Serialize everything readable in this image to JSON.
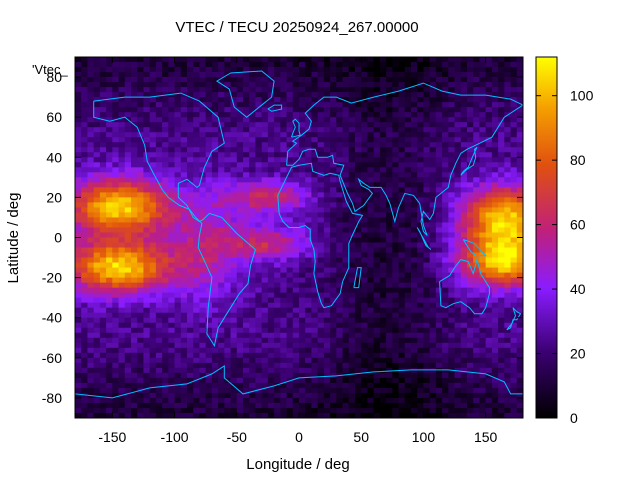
{
  "chart_data": {
    "type": "heatmap",
    "title": "VTEC / TECU 20250924_267.00000",
    "xlabel": "Longitude / deg",
    "ylabel": "Latitude / deg",
    "series_label": "'Vtec_",
    "xlim": [
      -180,
      180
    ],
    "ylim": [
      -90,
      90
    ],
    "x_ticks": [
      -150,
      -100,
      -50,
      0,
      50,
      100,
      150
    ],
    "y_ticks": [
      -80,
      -60,
      -40,
      -20,
      0,
      20,
      40,
      60,
      80
    ],
    "colorbar": {
      "range": [
        0,
        112
      ],
      "ticks": [
        0,
        20,
        40,
        60,
        80,
        100
      ]
    },
    "grid": false,
    "colors": {
      "overlay_coastlines": "#00bfff"
    },
    "field_description": {
      "peak_regions": [
        {
          "lon": [
            -180,
            -100
          ],
          "lat": [
            -25,
            30
          ],
          "peak": 110
        },
        {
          "lon": [
            110,
            180
          ],
          "lat": [
            -25,
            30
          ],
          "peak": 108
        },
        {
          "lon": [
            -60,
            20
          ],
          "lat": [
            -20,
            28
          ],
          "peak": 75
        }
      ],
      "minimum_regions": [
        {
          "lon": [
            20,
            120
          ],
          "lat": [
            -90,
            90
          ],
          "value": 5
        },
        {
          "lon": [
            -180,
            180
          ],
          "lat": [
            60,
            90
          ],
          "value": 8
        }
      ]
    }
  }
}
